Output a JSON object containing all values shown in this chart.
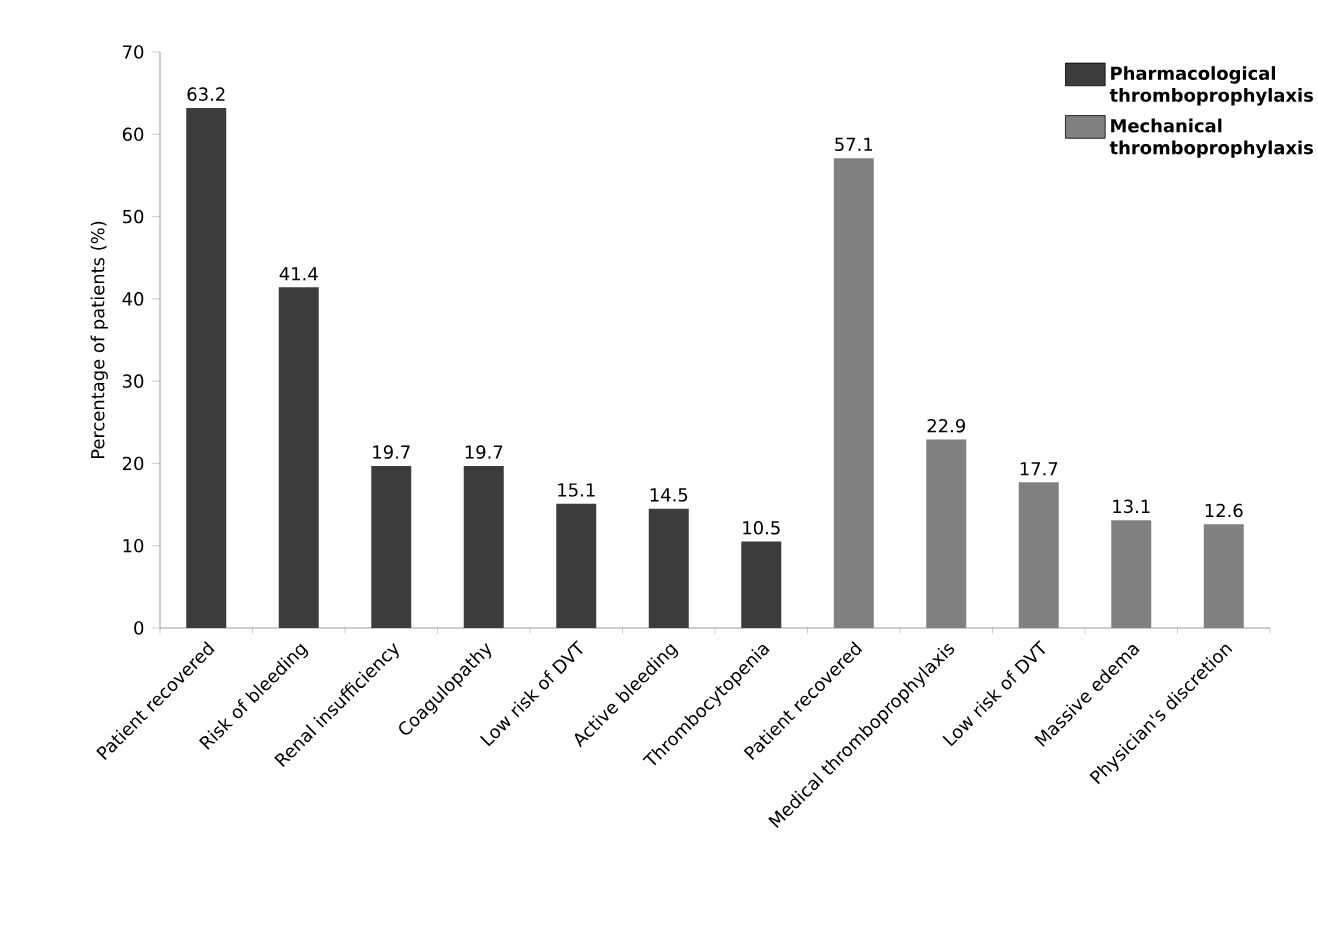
{
  "chart_data": {
    "type": "bar",
    "ylabel": "Percentage of patients (%)",
    "categories": [
      "Patient recovered",
      "Risk of bleeding",
      "Renal insufficiency",
      "Coagulopathy",
      "Low risk of DVT",
      "Active bleeding",
      "Thrombocytopenia",
      "Patient recovered",
      "Medical thromboprophylaxis",
      "Low risk of DVT",
      "Massive edema",
      "Physician's discretion"
    ],
    "series": [
      {
        "name": "**Pharmacological thromboprophylaxis**",
        "color": "#3c3c3c",
        "values": [
          63.2,
          41.4,
          19.7,
          19.7,
          15.1,
          14.5,
          10.5,
          null,
          null,
          null,
          null,
          null
        ]
      },
      {
        "name": "**Mechanical thromboprophylaxis**",
        "color": "#808080",
        "values": [
          null,
          null,
          null,
          null,
          null,
          null,
          null,
          57.1,
          22.9,
          17.7,
          13.1,
          12.6
        ]
      }
    ],
    "ylim": [
      0,
      70
    ],
    "yticks": [
      0,
      10,
      20,
      30,
      40,
      50,
      60,
      70
    ],
    "data_labels": true,
    "legend": "top right",
    "grid": false
  }
}
